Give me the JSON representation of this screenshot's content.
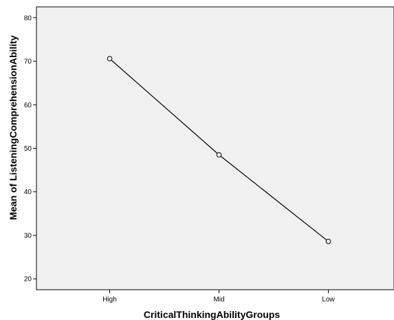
{
  "chart_data": {
    "type": "line",
    "title": "",
    "xlabel": "CriticalThinkingAbilityGroups",
    "ylabel": "Mean of ListeningComprehensionAbility",
    "categories": [
      "High",
      "Mid",
      "Low"
    ],
    "series": [
      {
        "values": [
          70.6,
          48.5,
          28.6
        ]
      }
    ],
    "ylim": [
      17.5,
      82.5
    ],
    "yticks": [
      20,
      30,
      40,
      50,
      60,
      70,
      80
    ],
    "grid": false,
    "legend": "none",
    "colors": {
      "plot_background": "#f0f0f0",
      "line": "#000000",
      "marker_fill": "#f0f0f0",
      "frame": "#000000"
    },
    "marker": "circle-open"
  }
}
